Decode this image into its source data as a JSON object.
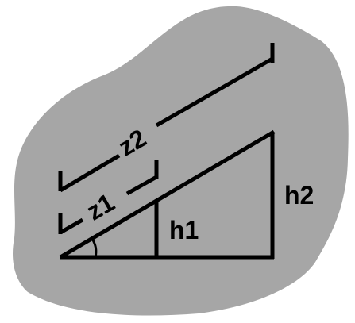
{
  "diagram": {
    "labels": {
      "z1": "z1",
      "z2": "z2",
      "h1": "h1",
      "h2": "h2"
    },
    "colors": {
      "blob_fill": "#a6a6a6",
      "line": "#000000",
      "background": "#ffffff"
    }
  }
}
